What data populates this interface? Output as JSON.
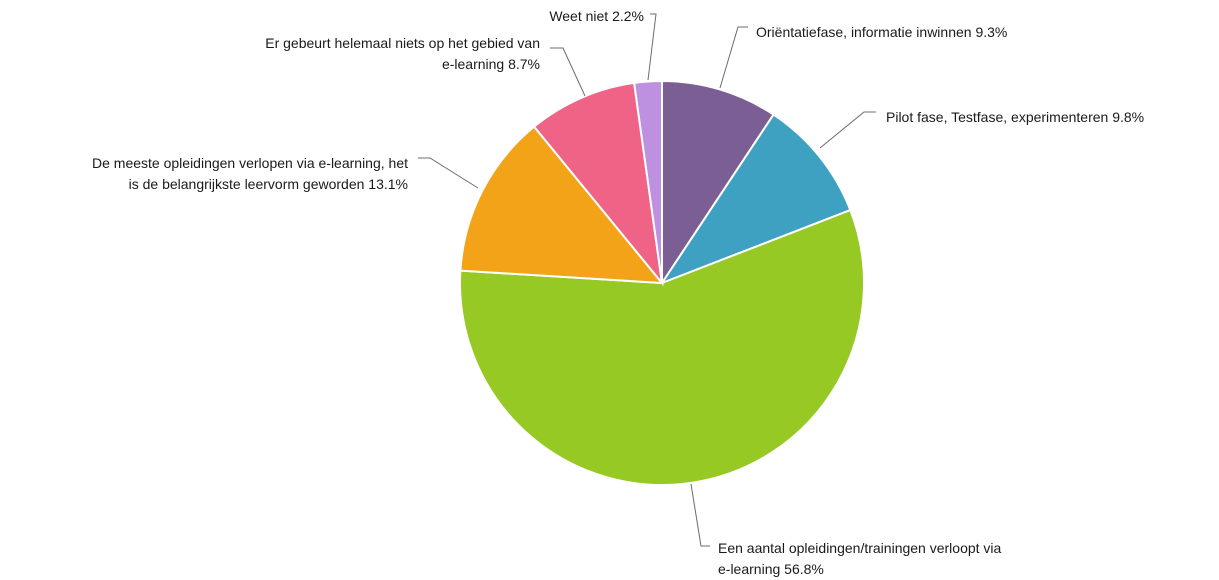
{
  "chart_data": {
    "type": "pie",
    "title": "",
    "slices": [
      {
        "label_lines": [
          "Oriëntatiefase, informatie inwinnen 9.3%"
        ],
        "value": 9.3,
        "color": "#7b5e94"
      },
      {
        "label_lines": [
          "Pilot fase, Testfase, experimenteren 9.8%"
        ],
        "value": 9.8,
        "color": "#3fa1c2"
      },
      {
        "label_lines": [
          "Een aantal opleidingen/trainingen verloopt via",
          "e-learning 56.8%"
        ],
        "value": 56.8,
        "color": "#97c924"
      },
      {
        "label_lines": [
          "De meeste opleidingen verlopen via e-learning, het",
          "is de belangrijkste leervorm geworden 13.1%"
        ],
        "value": 13.1,
        "color": "#f3a318"
      },
      {
        "label_lines": [
          "Er gebeurt helemaal niets op het gebied van",
          "e-learning 8.7%"
        ],
        "value": 8.7,
        "color": "#ef6387"
      },
      {
        "label_lines": [
          "Weet niet 2.2%"
        ],
        "value": 2.2,
        "color": "#be90e0"
      }
    ]
  }
}
